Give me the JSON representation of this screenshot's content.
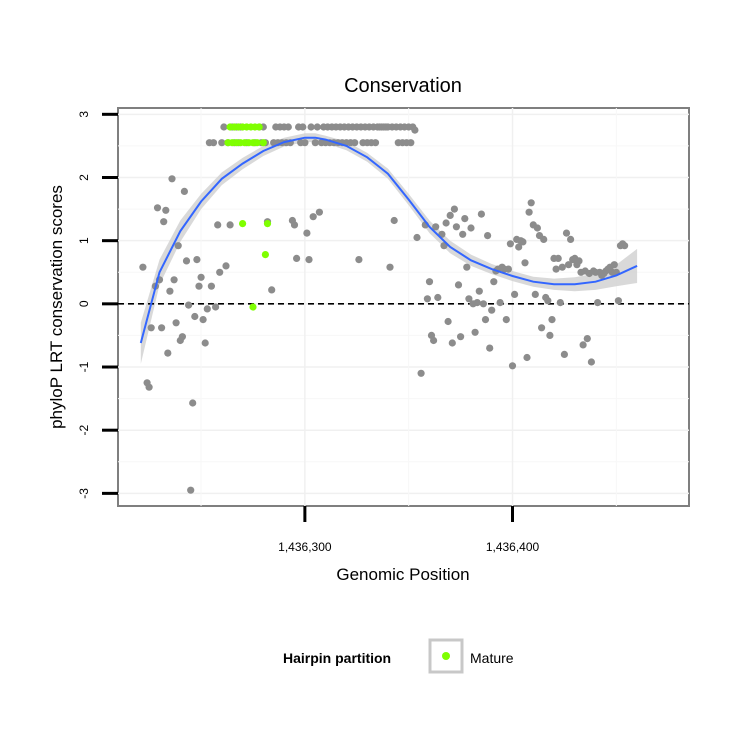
{
  "chart_data": {
    "type": "scatter",
    "title": "Conservation",
    "xlabel": "Genomic Position",
    "ylabel": "phyloP LRT conservation scores",
    "xlim": [
      1436210,
      1436485
    ],
    "ylim": [
      -3.2,
      3.1
    ],
    "x_ticks": [
      {
        "value": 1436300,
        "label": "1,436,300"
      },
      {
        "value": 1436400,
        "label": "1,436,400"
      }
    ],
    "y_ticks": [
      {
        "value": -3,
        "label": "-3"
      },
      {
        "value": -2,
        "label": "-2"
      },
      {
        "value": -1,
        "label": "-1"
      },
      {
        "value": 0,
        "label": "0"
      },
      {
        "value": 1,
        "label": "1"
      },
      {
        "value": 2,
        "label": "2"
      },
      {
        "value": 3,
        "label": "3"
      }
    ],
    "grid": true,
    "reference_line": {
      "y": 0,
      "style": "dashed"
    },
    "legend": {
      "title": "Hairpin partition",
      "placement": "bottom",
      "entries": [
        {
          "label": "Mature",
          "color": "#7fff00"
        }
      ]
    },
    "colors": {
      "other_points": "#8c8c8c",
      "mature_points": "#7fff00",
      "smooth_line": "#3366ff",
      "ci_band": "#cfcfcf"
    },
    "series": [
      {
        "name": "",
        "color": "#8c8c8c",
        "points": [
          [
            1436222,
            0.58
          ],
          [
            1436224,
            -1.25
          ],
          [
            1436225,
            -1.32
          ],
          [
            1436226,
            -0.38
          ],
          [
            1436228,
            0.28
          ],
          [
            1436229,
            1.52
          ],
          [
            1436230,
            0.38
          ],
          [
            1436231,
            -0.38
          ],
          [
            1436232,
            1.3
          ],
          [
            1436233,
            1.48
          ],
          [
            1436234,
            -0.78
          ],
          [
            1436235,
            0.2
          ],
          [
            1436236,
            1.98
          ],
          [
            1436237,
            0.38
          ],
          [
            1436238,
            -0.3
          ],
          [
            1436239,
            0.92
          ],
          [
            1436240,
            -0.58
          ],
          [
            1436241,
            -0.52
          ],
          [
            1436242,
            1.78
          ],
          [
            1436243,
            0.68
          ],
          [
            1436244,
            -0.02
          ],
          [
            1436245,
            -2.95
          ],
          [
            1436246,
            -1.57
          ],
          [
            1436247,
            -0.2
          ],
          [
            1436248,
            0.7
          ],
          [
            1436249,
            0.28
          ],
          [
            1436250,
            0.42
          ],
          [
            1436251,
            -0.25
          ],
          [
            1436252,
            -0.62
          ],
          [
            1436253,
            -0.08
          ],
          [
            1436254,
            2.55
          ],
          [
            1436255,
            0.28
          ],
          [
            1436256,
            2.55
          ],
          [
            1436257,
            -0.05
          ],
          [
            1436258,
            1.25
          ],
          [
            1436259,
            0.5
          ],
          [
            1436260,
            2.55
          ],
          [
            1436261,
            2.8
          ],
          [
            1436262,
            0.6
          ],
          [
            1436263,
            2.55
          ],
          [
            1436264,
            1.25
          ],
          [
            1436265,
            2.8
          ],
          [
            1436266,
            2.55
          ],
          [
            1436267,
            2.8
          ],
          [
            1436268,
            2.55
          ],
          [
            1436269,
            2.8
          ],
          [
            1436272,
            2.55
          ],
          [
            1436276,
            2.55
          ],
          [
            1436278,
            2.8
          ],
          [
            1436279,
            2.55
          ],
          [
            1436280,
            2.8
          ],
          [
            1436281,
            2.55
          ],
          [
            1436282,
            1.3
          ],
          [
            1436284,
            0.22
          ],
          [
            1436285,
            2.55
          ],
          [
            1436286,
            2.8
          ],
          [
            1436287,
            2.55
          ],
          [
            1436288,
            2.8
          ],
          [
            1436289,
            2.55
          ],
          [
            1436290,
            2.8
          ],
          [
            1436291,
            2.55
          ],
          [
            1436292,
            2.8
          ],
          [
            1436293,
            2.55
          ],
          [
            1436294,
            1.32
          ],
          [
            1436295,
            1.25
          ],
          [
            1436296,
            0.72
          ],
          [
            1436297,
            2.8
          ],
          [
            1436298,
            2.55
          ],
          [
            1436299,
            2.8
          ],
          [
            1436300,
            2.55
          ],
          [
            1436301,
            1.12
          ],
          [
            1436302,
            0.7
          ],
          [
            1436303,
            2.8
          ],
          [
            1436304,
            1.38
          ],
          [
            1436305,
            2.55
          ],
          [
            1436306,
            2.8
          ],
          [
            1436307,
            1.45
          ],
          [
            1436308,
            2.55
          ],
          [
            1436309,
            2.8
          ],
          [
            1436310,
            2.55
          ],
          [
            1436311,
            2.8
          ],
          [
            1436312,
            2.55
          ],
          [
            1436313,
            2.8
          ],
          [
            1436314,
            2.55
          ],
          [
            1436315,
            2.8
          ],
          [
            1436316,
            2.55
          ],
          [
            1436317,
            2.8
          ],
          [
            1436318,
            2.55
          ],
          [
            1436319,
            2.8
          ],
          [
            1436320,
            2.55
          ],
          [
            1436321,
            2.8
          ],
          [
            1436322,
            2.55
          ],
          [
            1436323,
            2.8
          ],
          [
            1436324,
            2.55
          ],
          [
            1436325,
            2.8
          ],
          [
            1436326,
            0.7
          ],
          [
            1436327,
            2.8
          ],
          [
            1436328,
            2.55
          ],
          [
            1436329,
            2.8
          ],
          [
            1436330,
            2.55
          ],
          [
            1436331,
            2.8
          ],
          [
            1436332,
            2.55
          ],
          [
            1436333,
            2.8
          ],
          [
            1436334,
            2.55
          ],
          [
            1436335,
            2.8
          ],
          [
            1436336,
            2.8
          ],
          [
            1436337,
            2.8
          ],
          [
            1436338,
            2.8
          ],
          [
            1436339,
            2.8
          ],
          [
            1436340,
            2.8
          ],
          [
            1436341,
            0.58
          ],
          [
            1436342,
            2.8
          ],
          [
            1436343,
            1.32
          ],
          [
            1436344,
            2.8
          ],
          [
            1436345,
            2.55
          ],
          [
            1436346,
            2.8
          ],
          [
            1436347,
            2.55
          ],
          [
            1436348,
            2.8
          ],
          [
            1436349,
            2.55
          ],
          [
            1436350,
            2.8
          ],
          [
            1436351,
            2.55
          ],
          [
            1436352,
            2.8
          ],
          [
            1436353,
            2.75
          ],
          [
            1436354,
            1.05
          ],
          [
            1436356,
            -1.1
          ],
          [
            1436358,
            1.25
          ],
          [
            1436359,
            0.08
          ],
          [
            1436360,
            0.35
          ],
          [
            1436361,
            -0.5
          ],
          [
            1436362,
            -0.58
          ],
          [
            1436363,
            1.22
          ],
          [
            1436364,
            0.1
          ],
          [
            1436366,
            1.1
          ],
          [
            1436367,
            0.92
          ],
          [
            1436368,
            1.28
          ],
          [
            1436369,
            -0.28
          ],
          [
            1436370,
            1.4
          ],
          [
            1436371,
            -0.62
          ],
          [
            1436372,
            1.5
          ],
          [
            1436373,
            1.22
          ],
          [
            1436374,
            0.3
          ],
          [
            1436375,
            -0.52
          ],
          [
            1436376,
            1.1
          ],
          [
            1436377,
            1.35
          ],
          [
            1436378,
            0.58
          ],
          [
            1436379,
            0.08
          ],
          [
            1436380,
            1.2
          ],
          [
            1436381,
            0.0
          ],
          [
            1436382,
            -0.45
          ],
          [
            1436383,
            0.02
          ],
          [
            1436384,
            0.2
          ],
          [
            1436385,
            1.42
          ],
          [
            1436386,
            0.0
          ],
          [
            1436387,
            -0.25
          ],
          [
            1436388,
            1.08
          ],
          [
            1436389,
            -0.7
          ],
          [
            1436390,
            -0.1
          ],
          [
            1436391,
            0.35
          ],
          [
            1436392,
            0.52
          ],
          [
            1436393,
            0.55
          ],
          [
            1436394,
            0.02
          ],
          [
            1436395,
            0.58
          ],
          [
            1436396,
            0.55
          ],
          [
            1436397,
            -0.25
          ],
          [
            1436398,
            0.55
          ],
          [
            1436399,
            0.95
          ],
          [
            1436400,
            -0.98
          ],
          [
            1436401,
            0.15
          ],
          [
            1436402,
            1.02
          ],
          [
            1436403,
            0.9
          ],
          [
            1436404,
            1.0
          ],
          [
            1436405,
            0.98
          ],
          [
            1436406,
            0.65
          ],
          [
            1436407,
            -0.85
          ],
          [
            1436408,
            1.45
          ],
          [
            1436409,
            1.6
          ],
          [
            1436410,
            1.25
          ],
          [
            1436411,
            0.15
          ],
          [
            1436412,
            1.2
          ],
          [
            1436413,
            1.08
          ],
          [
            1436414,
            -0.38
          ],
          [
            1436415,
            1.02
          ],
          [
            1436416,
            0.1
          ],
          [
            1436417,
            0.05
          ],
          [
            1436418,
            -0.5
          ],
          [
            1436419,
            -0.25
          ],
          [
            1436420,
            0.72
          ],
          [
            1436421,
            0.55
          ],
          [
            1436422,
            0.72
          ],
          [
            1436423,
            0.02
          ],
          [
            1436424,
            0.58
          ],
          [
            1436425,
            -0.8
          ],
          [
            1436426,
            1.12
          ],
          [
            1436427,
            0.62
          ],
          [
            1436428,
            1.02
          ],
          [
            1436429,
            0.7
          ],
          [
            1436430,
            0.72
          ],
          [
            1436431,
            0.62
          ],
          [
            1436432,
            0.68
          ],
          [
            1436433,
            0.5
          ],
          [
            1436434,
            -0.65
          ],
          [
            1436435,
            0.52
          ],
          [
            1436436,
            -0.55
          ],
          [
            1436437,
            0.48
          ],
          [
            1436438,
            -0.92
          ],
          [
            1436439,
            0.52
          ],
          [
            1436440,
            0.5
          ],
          [
            1436441,
            0.02
          ],
          [
            1436442,
            0.5
          ],
          [
            1436443,
            0.45
          ],
          [
            1436444,
            0.48
          ],
          [
            1436445,
            0.52
          ],
          [
            1436446,
            0.55
          ],
          [
            1436447,
            0.58
          ],
          [
            1436448,
            0.5
          ],
          [
            1436449,
            0.62
          ],
          [
            1436450,
            0.5
          ],
          [
            1436451,
            0.05
          ],
          [
            1436452,
            0.92
          ],
          [
            1436453,
            0.95
          ],
          [
            1436454,
            0.92
          ]
        ]
      },
      {
        "name": "Mature",
        "color": "#7fff00",
        "points": [
          [
            1436263,
            2.55
          ],
          [
            1436264,
            2.8
          ],
          [
            1436265,
            2.55
          ],
          [
            1436266,
            2.8
          ],
          [
            1436267,
            2.55
          ],
          [
            1436268,
            2.8
          ],
          [
            1436269,
            2.55
          ],
          [
            1436270,
            2.8
          ],
          [
            1436270,
            1.27
          ],
          [
            1436271,
            2.55
          ],
          [
            1436272,
            2.8
          ],
          [
            1436273,
            2.55
          ],
          [
            1436274,
            2.8
          ],
          [
            1436275,
            -0.05
          ],
          [
            1436275,
            2.55
          ],
          [
            1436276,
            2.8
          ],
          [
            1436277,
            2.55
          ],
          [
            1436278,
            2.8
          ],
          [
            1436280,
            2.55
          ],
          [
            1436281,
            0.78
          ],
          [
            1436282,
            1.27
          ]
        ]
      }
    ],
    "smooth": {
      "x": [
        1436221,
        1436230,
        1436240,
        1436250,
        1436260,
        1436270,
        1436280,
        1436290,
        1436300,
        1436305,
        1436310,
        1436320,
        1436330,
        1436340,
        1436350,
        1436360,
        1436370,
        1436380,
        1436390,
        1436400,
        1436410,
        1436420,
        1436430,
        1436440,
        1436450,
        1436460
      ],
      "y": [
        -0.62,
        0.5,
        1.15,
        1.62,
        1.98,
        2.22,
        2.42,
        2.56,
        2.63,
        2.63,
        2.6,
        2.5,
        2.32,
        2.06,
        1.65,
        1.22,
        0.9,
        0.69,
        0.55,
        0.44,
        0.35,
        0.31,
        0.31,
        0.35,
        0.45,
        0.6
      ],
      "lower": [
        -0.95,
        0.3,
        0.98,
        1.5,
        1.88,
        2.13,
        2.34,
        2.49,
        2.56,
        2.56,
        2.54,
        2.43,
        2.25,
        1.98,
        1.56,
        1.12,
        0.8,
        0.6,
        0.47,
        0.36,
        0.27,
        0.22,
        0.2,
        0.22,
        0.28,
        0.33
      ],
      "upper": [
        -0.3,
        0.7,
        1.32,
        1.74,
        2.08,
        2.31,
        2.5,
        2.63,
        2.7,
        2.7,
        2.66,
        2.57,
        2.39,
        2.14,
        1.74,
        1.32,
        1.0,
        0.78,
        0.63,
        0.52,
        0.43,
        0.4,
        0.42,
        0.48,
        0.62,
        0.87
      ]
    }
  }
}
